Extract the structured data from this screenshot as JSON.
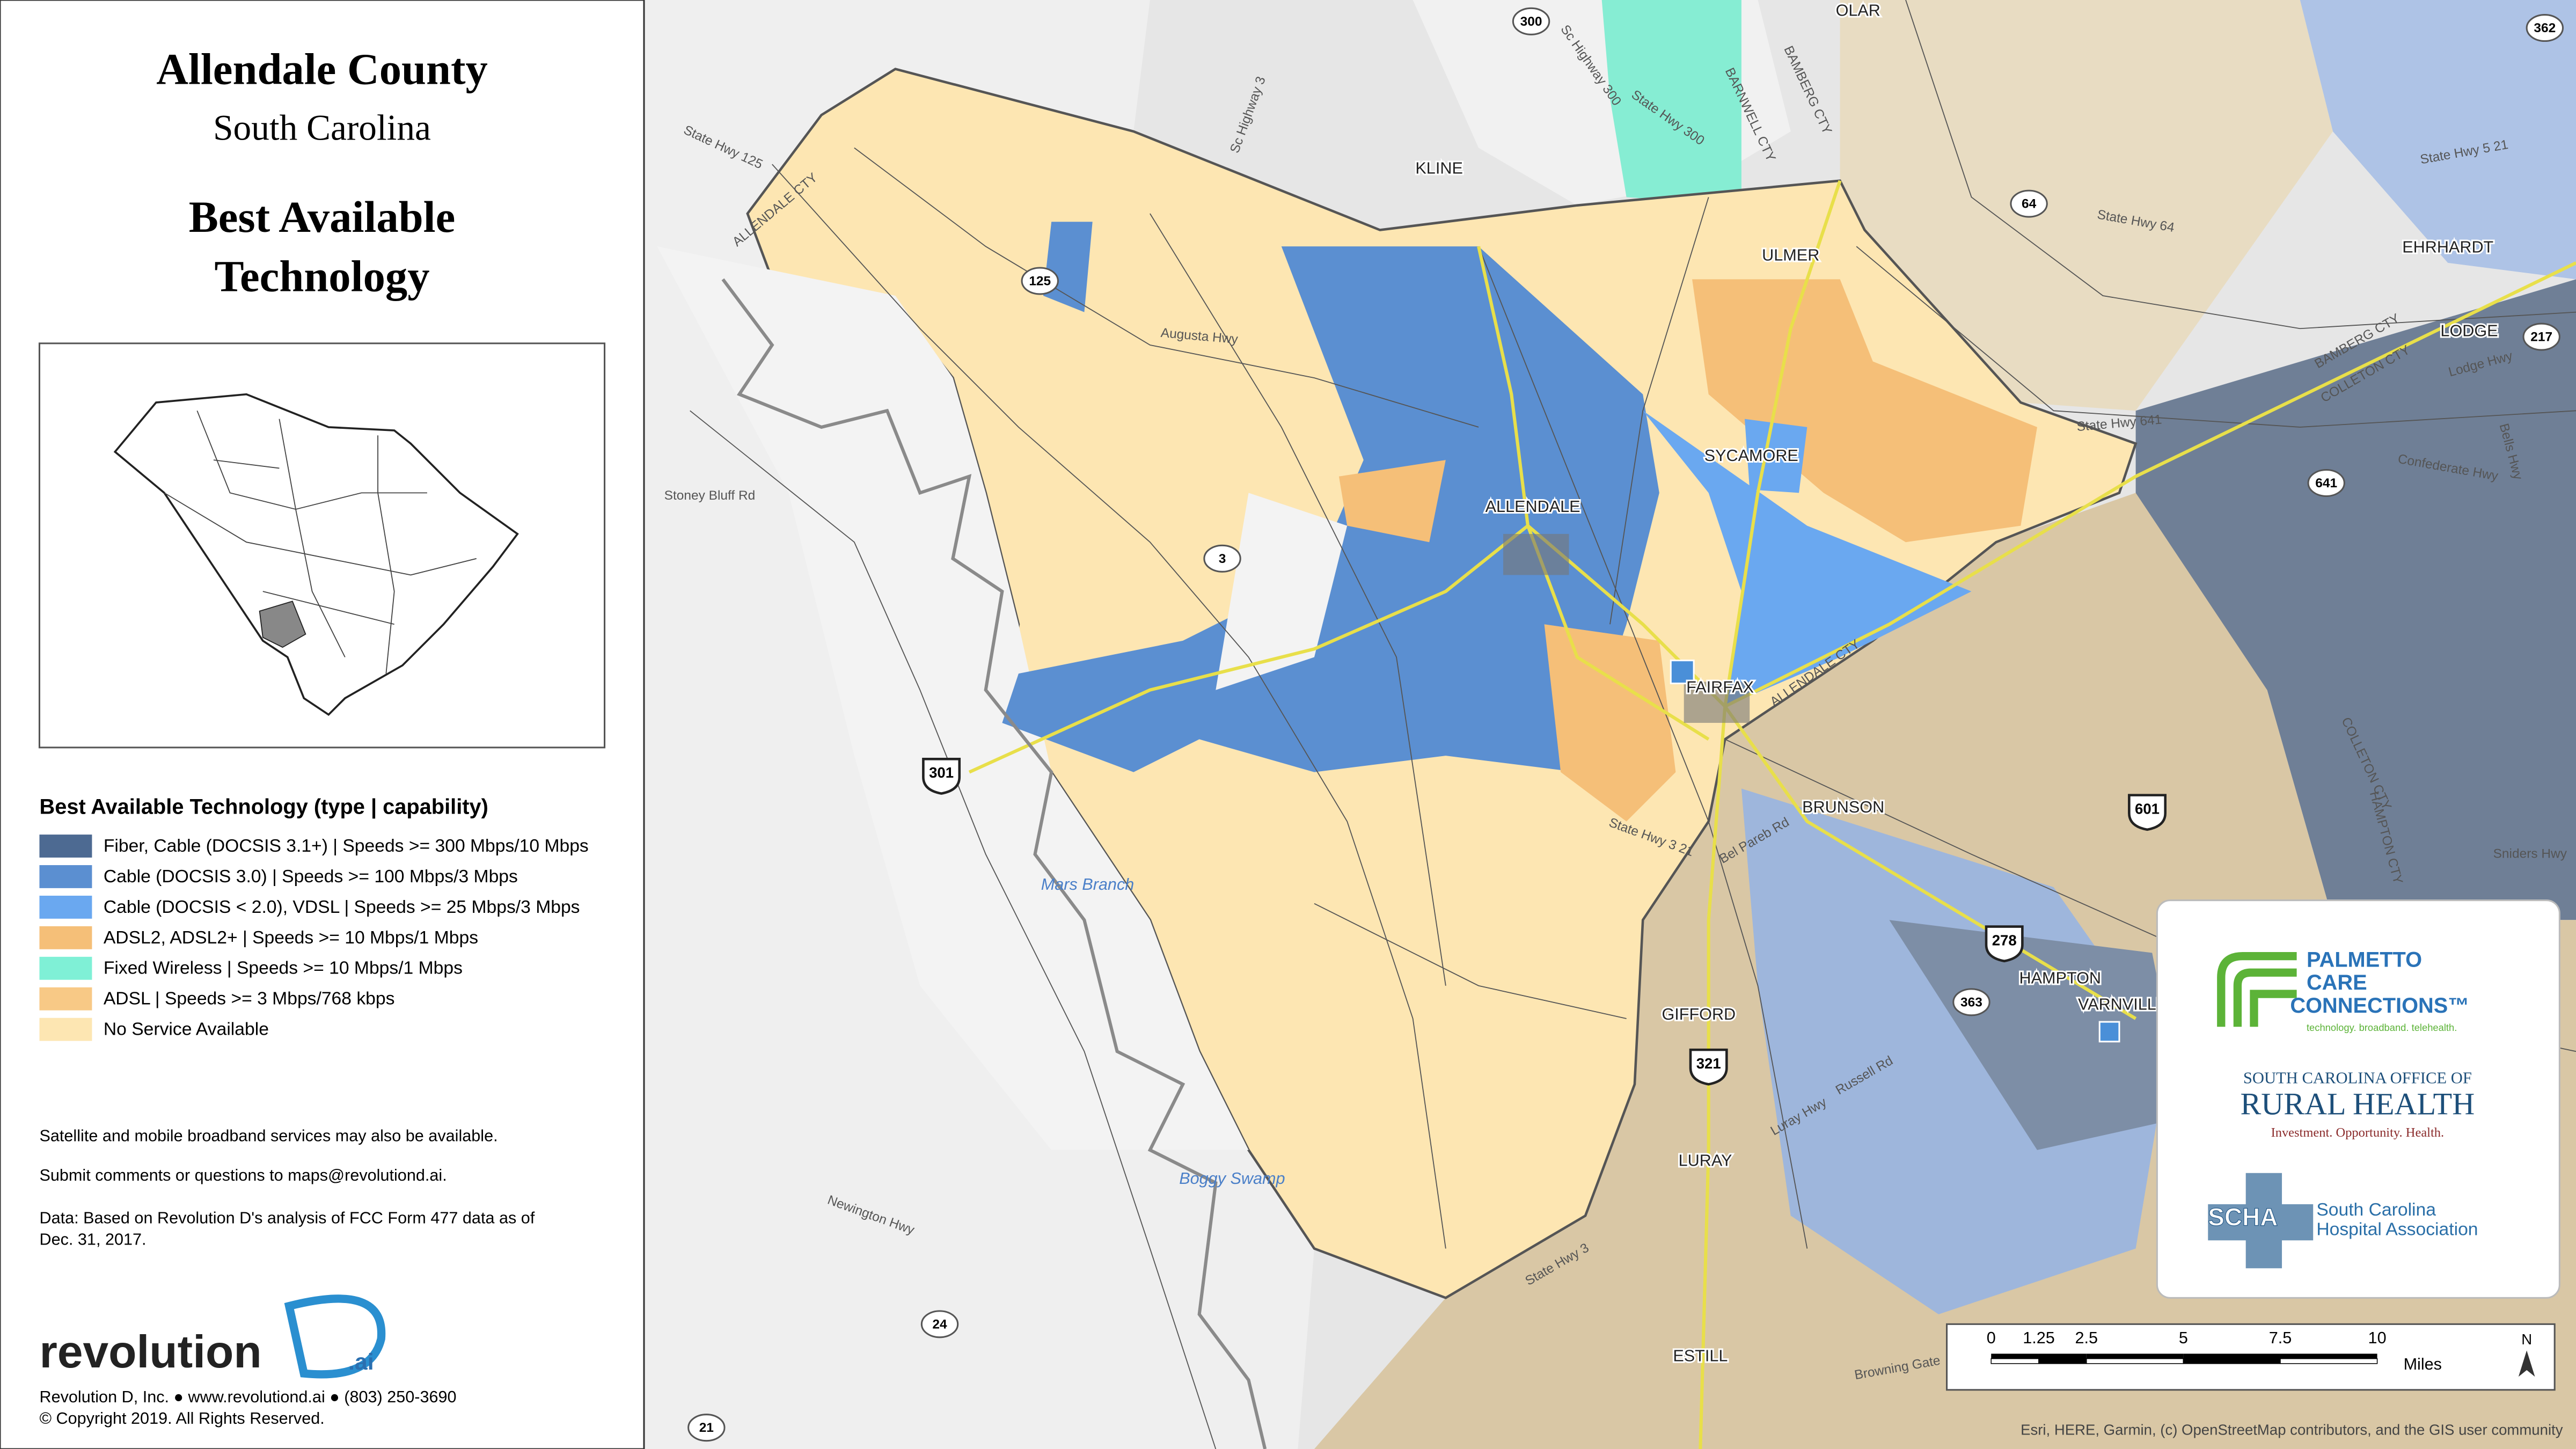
{
  "header": {
    "title": "Allendale County",
    "subtitle": "South Carolina",
    "heading_lines": [
      "Best Available",
      "Technology"
    ]
  },
  "legend": {
    "title": "Best Available Technology (type | capability)",
    "items": [
      {
        "label": "Fiber, Cable (DOCSIS 3.1+) | Speeds >= 300 Mbps/10 Mbps",
        "color": "#4d6a92"
      },
      {
        "label": "Cable (DOCSIS 3.0) | Speeds >= 100 Mbps/3 Mbps",
        "color": "#5b8fd1"
      },
      {
        "label": "Cable (DOCSIS < 2.0), VDSL | Speeds >= 25 Mbps/3 Mbps",
        "color": "#6aa8f0"
      },
      {
        "label": "ADSL2, ADSL2+ | Speeds >= 10 Mbps/1 Mbps",
        "color": "#f5bf78"
      },
      {
        "label": "Fixed Wireless | Speeds >= 10 Mbps/1 Mbps",
        "color": "#7ff0d6"
      },
      {
        "label": " ADSL | Speeds >= 3 Mbps/768 kbps",
        "color": "#f8c986"
      },
      {
        "label": "No Service Available",
        "color": "#fde6b2"
      }
    ]
  },
  "notes": [
    "Satellite and mobile broadband services may also be available.",
    "Submit comments or questions to maps@revolutiond.ai.",
    "Data: Based on Revolution D's analysis of FCC Form 477 data as of",
    "Dec. 31, 2017."
  ],
  "logo": {
    "name": "revolution",
    "suffix": ".ai"
  },
  "contact": [
    "Revolution D, Inc. ● www.revolutiond.ai ● (803) 250-3690",
    "© Copyright 2019. All Rights Reserved."
  ],
  "map": {
    "places": [
      "OLAR",
      "KLINE",
      "ULMER",
      "EHRHARDT",
      "LODGE",
      "SYCAMORE",
      "ALLENDALE",
      "FAIRFAX",
      "BRUNSON",
      "HAMPTON",
      "VARNVILLE",
      "GIFFORD",
      "LURAY",
      "ESTILL"
    ],
    "roads": [
      "State Hwy 125",
      "ALLENDALE CTY",
      "Sc Highway 3",
      "Sc Highway 300",
      "State Hwy 300",
      "BARNWELL CTY",
      "BAMBERG CTY",
      "State Hwy 64",
      "State Hwy 5 21",
      "Augusta Hwy",
      "Stoney Bluff Rd",
      "State Hwy 641",
      "BAMBERG CTY",
      "COLLETON CTY",
      "Lodge Hwy",
      "Confederate Hwy",
      "Bells Hwy",
      "ALLENDALE CTY",
      "State Hwy 3 21",
      "Bel Pareb Rd",
      "Sniders Hwy",
      "HAMPTON CTY",
      "COLLETON CTY",
      "Russell Rd",
      "Luray Hwy",
      "State Hwy 3",
      "Newington Hwy",
      "Browning Gate"
    ],
    "water": [
      "Mars Branch",
      "Boggy Swamp"
    ],
    "us_routes": [
      "301",
      "601",
      "278",
      "321"
    ],
    "state_routes": [
      "300",
      "125",
      "64",
      "217",
      "362",
      "641",
      "3",
      "363",
      "24",
      "21"
    ]
  },
  "scale_bar": {
    "ticks": [
      "0",
      "1.25",
      "2.5",
      "5",
      "7.5",
      "10"
    ],
    "unit": "Miles",
    "north": "N"
  },
  "attribution": "Esri, HERE, Garmin, (c) OpenStreetMap contributors, and the GIS user community",
  "partners": {
    "pcc": [
      "PALMETTO",
      "CARE",
      "CONNECTIONS™",
      "technology. broadband. telehealth."
    ],
    "orh": [
      "SOUTH CAROLINA OFFICE OF",
      "RURAL HEALTH",
      "Investment. Opportunity. Health."
    ],
    "scha": [
      "SCHA",
      "South Carolina",
      "Hospital Association"
    ]
  }
}
